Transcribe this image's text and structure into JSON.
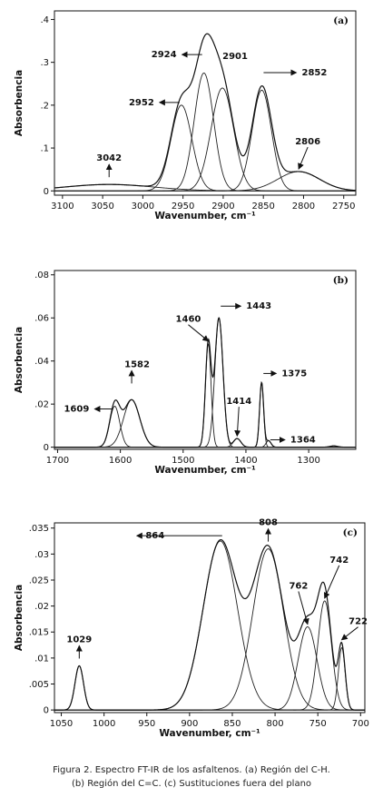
{
  "caption": {
    "line1": "Figura 2. Espectro FT-IR de los asfaltenos. (a) Región del C-H.",
    "line2": "(b) Región del C=C. (c) Sustituciones fuera del plano"
  },
  "chart_data": [
    {
      "type": "line",
      "panel_label": "(a)",
      "xlabel": "Wavenumber, cm⁻¹",
      "ylabel": "Absorbencia",
      "xlim": [
        3110,
        2735
      ],
      "ylim": [
        -0.01,
        0.42
      ],
      "xticks": [
        3100,
        3050,
        3000,
        2950,
        2900,
        2850,
        2800,
        2750
      ],
      "xtick_labels": [
        "3100",
        "3050",
        "3000",
        "2950",
        "2900",
        "2850",
        "2800",
        "2750"
      ],
      "yticks": [
        0,
        0.1,
        0.2,
        0.3,
        0.4
      ],
      "ytick_labels": [
        "0",
        ".1",
        ".2",
        ".3",
        ".4"
      ],
      "components": [
        {
          "center": 3042,
          "height": 0.015,
          "width": 55
        },
        {
          "center": 2952,
          "height": 0.2,
          "width": 13
        },
        {
          "center": 2924,
          "height": 0.275,
          "width": 12
        },
        {
          "center": 2901,
          "height": 0.24,
          "width": 14
        },
        {
          "center": 2852,
          "height": 0.235,
          "width": 12
        },
        {
          "center": 2806,
          "height": 0.045,
          "width": 26
        }
      ],
      "annotations": [
        {
          "text": "3042",
          "x": 3042,
          "y": 0.015,
          "arrow": "up"
        },
        {
          "text": "2952",
          "x": 2952,
          "y": 0.2,
          "arrow": "left"
        },
        {
          "text": "2924",
          "x": 2924,
          "y": 0.28,
          "arrow": "left"
        },
        {
          "text": "2901",
          "x": 2901,
          "y": 0.24,
          "arrow": "none"
        },
        {
          "text": "2852",
          "x": 2852,
          "y": 0.24,
          "arrow": "right"
        },
        {
          "text": "2806",
          "x": 2806,
          "y": 0.045,
          "arrow": "down"
        }
      ]
    },
    {
      "type": "line",
      "panel_label": "(b)",
      "xlabel": "Wavenumber, cm⁻¹",
      "ylabel": "Absorbencia",
      "xlim": [
        1705,
        1225
      ],
      "ylim": [
        -0.001,
        0.082
      ],
      "xticks": [
        1700,
        1600,
        1500,
        1400,
        1300
      ],
      "xtick_labels": [
        "1700",
        "1600",
        "1500",
        "1400",
        "1300"
      ],
      "yticks": [
        0,
        0.02,
        0.04,
        0.06,
        0.08
      ],
      "ytick_labels": [
        "0",
        ".02",
        ".04",
        ".06",
        ".08"
      ],
      "components": [
        {
          "center": 1609,
          "height": 0.019,
          "width": 8
        },
        {
          "center": 1582,
          "height": 0.022,
          "width": 13
        },
        {
          "center": 1460,
          "height": 0.048,
          "width": 4.5
        },
        {
          "center": 1443,
          "height": 0.06,
          "width": 6.5
        },
        {
          "center": 1414,
          "height": 0.004,
          "width": 6
        },
        {
          "center": 1375,
          "height": 0.03,
          "width": 3.2
        },
        {
          "center": 1364,
          "height": 0.003,
          "width": 4
        },
        {
          "center": 1260,
          "height": 0.0006,
          "width": 6
        }
      ],
      "annotations": [
        {
          "text": "1609",
          "x": 1609,
          "y": 0.019,
          "arrow": "left"
        },
        {
          "text": "1582",
          "x": 1582,
          "y": 0.022,
          "arrow": "up"
        },
        {
          "text": "1460",
          "x": 1460,
          "y": 0.048,
          "arrow": "down"
        },
        {
          "text": "1443",
          "x": 1443,
          "y": 0.06,
          "arrow": "right"
        },
        {
          "text": "1414",
          "x": 1414,
          "y": 0.004,
          "arrow": "down"
        },
        {
          "text": "1375",
          "x": 1375,
          "y": 0.03,
          "arrow": "right"
        },
        {
          "text": "1364",
          "x": 1364,
          "y": 0.003,
          "arrow": "right"
        }
      ]
    },
    {
      "type": "line",
      "panel_label": "(c)",
      "xlabel": "Wavenumber, cm⁻¹",
      "ylabel": "Absorbencia",
      "xlim": [
        1058,
        695
      ],
      "ylim": [
        -0.0005,
        0.036
      ],
      "xticks": [
        1050,
        1000,
        950,
        900,
        850,
        800,
        750,
        700
      ],
      "xtick_labels": [
        "1050",
        "1000",
        "950",
        "900",
        "850",
        "800",
        "750",
        "700"
      ],
      "yticks": [
        0,
        0.005,
        0.01,
        0.015,
        0.02,
        0.025,
        0.03,
        0.035
      ],
      "ytick_labels": [
        "0",
        ".005",
        ".01",
        ".015",
        ".02",
        ".025",
        ".03",
        ".035"
      ],
      "components": [
        {
          "center": 1029,
          "height": 0.0085,
          "width": 5
        },
        {
          "center": 864,
          "height": 0.0325,
          "width": 20
        },
        {
          "center": 808,
          "height": 0.031,
          "width": 18
        },
        {
          "center": 762,
          "height": 0.016,
          "width": 11
        },
        {
          "center": 742,
          "height": 0.021,
          "width": 8
        },
        {
          "center": 722,
          "height": 0.012,
          "width": 4
        }
      ],
      "annotations": [
        {
          "text": "1029",
          "x": 1029,
          "y": 0.0085,
          "arrow": "up"
        },
        {
          "text": "864",
          "x": 864,
          "y": 0.033,
          "arrow": "right"
        },
        {
          "text": "808",
          "x": 808,
          "y": 0.031,
          "arrow": "up"
        },
        {
          "text": "762",
          "x": 762,
          "y": 0.016,
          "arrow": "down"
        },
        {
          "text": "742",
          "x": 742,
          "y": 0.021,
          "arrow": "down"
        },
        {
          "text": "722",
          "x": 722,
          "y": 0.013,
          "arrow": "down"
        }
      ]
    }
  ]
}
